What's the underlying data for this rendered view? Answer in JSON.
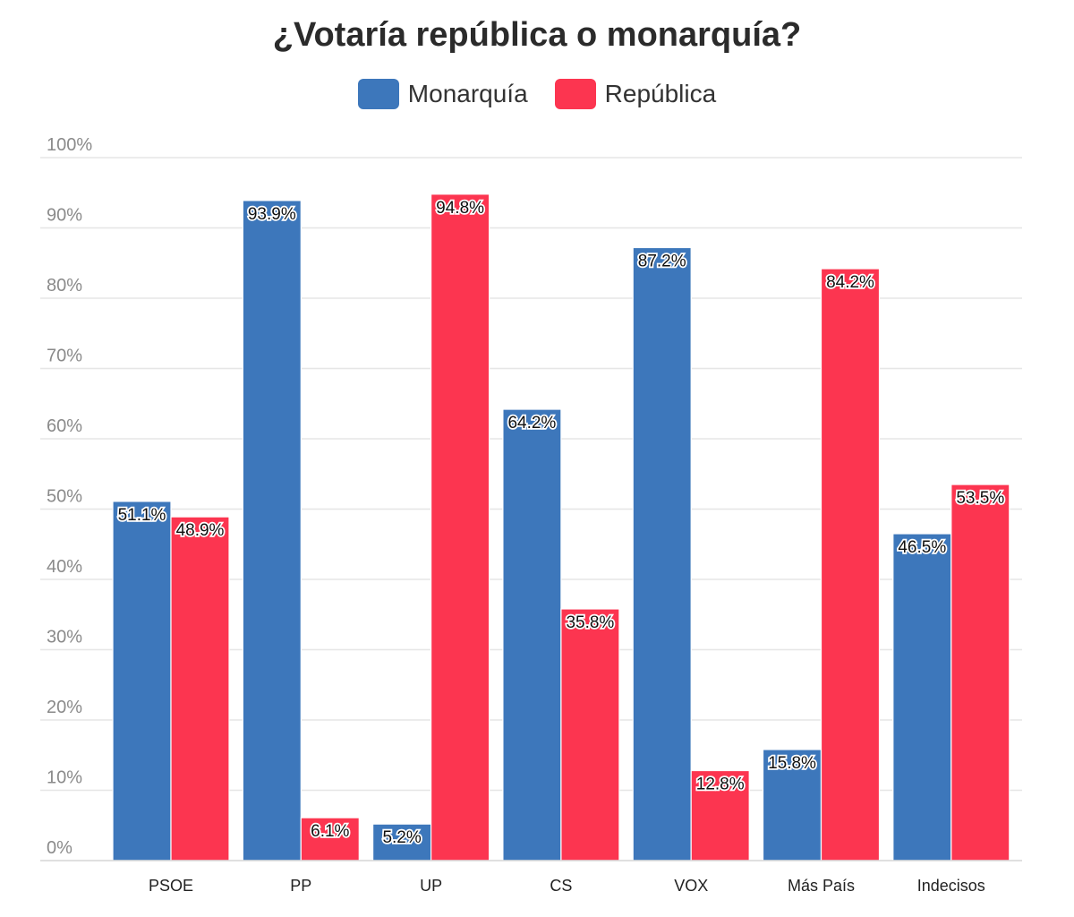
{
  "chart_data": {
    "type": "bar",
    "title": "¿Votaría república o monarquía?",
    "categories": [
      "PSOE",
      "PP",
      "UP",
      "CS",
      "VOX",
      "Más País",
      "Indecisos"
    ],
    "series": [
      {
        "name": "Monarquía",
        "color": "#3d77bb",
        "values": [
          51.1,
          93.9,
          5.2,
          64.2,
          87.2,
          15.8,
          46.5
        ]
      },
      {
        "name": "República",
        "color": "#fc3550",
        "values": [
          48.9,
          6.1,
          94.8,
          35.8,
          12.8,
          84.2,
          53.5
        ]
      }
    ],
    "value_labels": [
      [
        "51.1%",
        "93.9%",
        "5.2%",
        "64.2%",
        "87.2%",
        "15.8%",
        "46.5%"
      ],
      [
        "48.9%",
        "6.1%",
        "94.8%",
        "35.8%",
        "12.8%",
        "84.2%",
        "53.5%"
      ]
    ],
    "y_ticks": [
      0,
      10,
      20,
      30,
      40,
      50,
      60,
      70,
      80,
      90,
      100
    ],
    "y_tick_labels": [
      "0%",
      "10%",
      "20%",
      "30%",
      "40%",
      "50%",
      "60%",
      "70%",
      "80%",
      "90%",
      "100%"
    ],
    "ylim": [
      0,
      100
    ],
    "xlabel": "",
    "ylabel": "",
    "grid": true,
    "legend_position": "top-center"
  }
}
